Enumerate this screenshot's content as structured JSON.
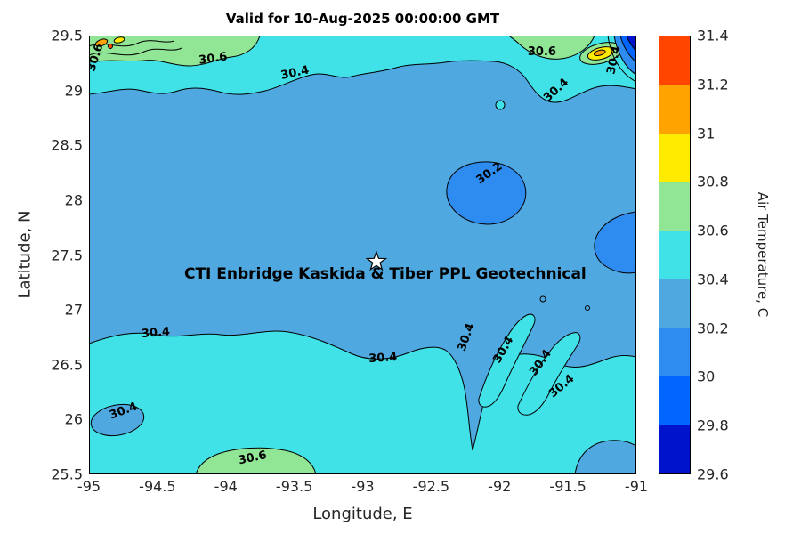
{
  "chart_data": {
    "type": "contour",
    "title": "Valid for 10-Aug-2025 00:00:00 GMT",
    "xlabel": "Longitude, E",
    "ylabel": "Latitude, N",
    "xlim": [
      -95,
      -91
    ],
    "ylim": [
      25.5,
      29.5
    ],
    "x_ticks": [
      "-95",
      "-94.5",
      "-94",
      "-93.5",
      "-93",
      "-92.5",
      "-92",
      "-91.5",
      "-91"
    ],
    "y_ticks": [
      "25.5",
      "26",
      "26.5",
      "27",
      "27.5",
      "28",
      "28.5",
      "29",
      "29.5"
    ],
    "grid": false,
    "colorbar": {
      "label": "Air Temperature, C",
      "ticks": [
        "29.6",
        "29.8",
        "30",
        "30.2",
        "30.4",
        "30.6",
        "30.8",
        "31",
        "31.2",
        "31.4"
      ],
      "min": 29.6,
      "max": 31.4,
      "bands": [
        {
          "min": 29.6,
          "max": 29.8,
          "color": "#0013CC"
        },
        {
          "min": 29.8,
          "max": 30.0,
          "color": "#0066FF"
        },
        {
          "min": 30.0,
          "max": 30.2,
          "color": "#2E8CF0"
        },
        {
          "min": 30.2,
          "max": 30.4,
          "color": "#4FA8DF"
        },
        {
          "min": 30.4,
          "max": 30.6,
          "color": "#40E2E8"
        },
        {
          "min": 30.6,
          "max": 30.8,
          "color": "#90E695"
        },
        {
          "min": 30.8,
          "max": 31.0,
          "color": "#FFEB00"
        },
        {
          "min": 31.0,
          "max": 31.2,
          "color": "#FFA300"
        },
        {
          "min": 31.2,
          "max": 31.4,
          "color": "#FF4500"
        }
      ]
    },
    "contour_levels": [
      30.2,
      30.4,
      30.6
    ],
    "contour_labels": [
      {
        "text": "30.6",
        "lon": -94.09,
        "lat": 29.26,
        "rot": -8
      },
      {
        "text": "30.4",
        "lon": -93.49,
        "lat": 29.13,
        "rot": -12
      },
      {
        "text": "30.6",
        "lon": -91.69,
        "lat": 29.32,
        "rot": 0
      },
      {
        "text": "30.4",
        "lon": -91.57,
        "lat": 28.98,
        "rot": -42
      },
      {
        "text": "30.2",
        "lon": -92.06,
        "lat": 28.22,
        "rot": -35
      },
      {
        "text": "30.4",
        "lon": -94.51,
        "lat": 26.76,
        "rot": -5
      },
      {
        "text": "30.4",
        "lon": -92.85,
        "lat": 26.53,
        "rot": -4
      },
      {
        "text": "30.4",
        "lon": -92.22,
        "lat": 26.74,
        "rot": -70
      },
      {
        "text": "30.4",
        "lon": -91.95,
        "lat": 26.62,
        "rot": -60
      },
      {
        "text": "30.4",
        "lon": -91.68,
        "lat": 26.5,
        "rot": -55
      },
      {
        "text": "30.4",
        "lon": -91.53,
        "lat": 26.28,
        "rot": -40
      },
      {
        "text": "30.4",
        "lon": -94.74,
        "lat": 26.05,
        "rot": -20
      },
      {
        "text": "30.6",
        "lon": -93.8,
        "lat": 25.62,
        "rot": -12
      },
      {
        "text": "30.6",
        "lon": -94.93,
        "lat": 29.29,
        "rot": -72
      },
      {
        "text": "30.4",
        "lon": -91.14,
        "lat": 29.27,
        "rot": -78
      }
    ],
    "marker": {
      "symbol": "star",
      "lon": -92.9,
      "lat": 27.44,
      "label": "CTI Enbridge  Kaskida & Tiber PPL Geotechnical"
    },
    "regions": [
      {
        "value_range": "30.2-30.4",
        "description": "Dominant medium-blue background over most of the map"
      },
      {
        "value_range": "30.4-30.6",
        "description": "Cyan band along the bottom (south of ~26.7N) and along the top (north of ~29N), with diagonal cyan strips near -92 to -91.5E, 26-27N"
      },
      {
        "value_range": "30.6-30.8",
        "description": "Light-green patches at top-left, top-right and bottom-center"
      },
      {
        "value_range": "30.0-30.2",
        "description": "Cooler blue pool near (-92.15E, 28.1N) labeled 30.2 and a lobe on the right edge near 27.6N"
      },
      {
        "value_range": "29.6-30.0",
        "description": "Small cold striped feature in the extreme top-right corner"
      },
      {
        "value_range": "30.8-31.4",
        "description": "Tiny warm yellow/orange spots at the extreme top-left and near the top-right corner"
      }
    ]
  }
}
